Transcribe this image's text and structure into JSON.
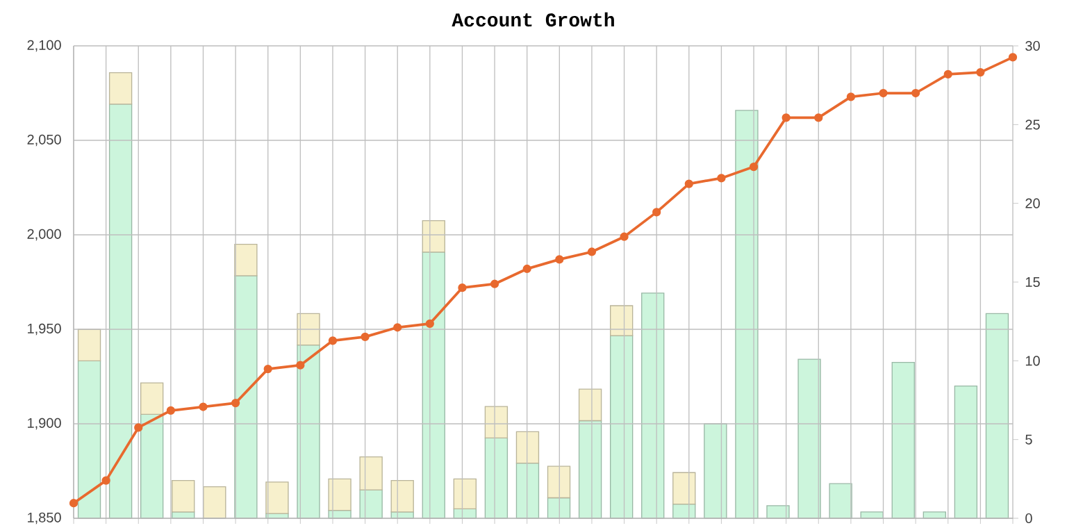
{
  "chart_data": {
    "type": "bar",
    "title": "Account Growth",
    "stacked": true,
    "grid": true,
    "categories": [
      null,
      null,
      null,
      null,
      null,
      null,
      null,
      null,
      null,
      null,
      null,
      null,
      null,
      null,
      null,
      null,
      null,
      null,
      null,
      null,
      null,
      null,
      null,
      null,
      null,
      null,
      null,
      null,
      null,
      null
    ],
    "ylim": [
      1850,
      2100
    ],
    "yticks": [
      {
        "value": 1850,
        "label": "1,850"
      },
      {
        "value": 1900,
        "label": "1,900"
      },
      {
        "value": 1950,
        "label": "1,950"
      },
      {
        "value": 2000,
        "label": "2,000"
      },
      {
        "value": 2050,
        "label": "2,050"
      },
      {
        "value": 2100,
        "label": "2,100"
      }
    ],
    "y2lim": [
      0,
      30
    ],
    "y2ticks": [
      0,
      5,
      10,
      15,
      20,
      25,
      30
    ],
    "series": [
      {
        "color": "#ccf5dc",
        "axis": "y2",
        "values": [
          10,
          26.3,
          6.6,
          0.4,
          0,
          15.4,
          0.3,
          11,
          0.5,
          1.8,
          0.4,
          16.9,
          0.6,
          5.1,
          3.5,
          1.3,
          6.2,
          11.6,
          14.3,
          0.9,
          6,
          25.9,
          0.8,
          10.1,
          2.2,
          0.4,
          9.9,
          0.4,
          8.4,
          13
        ]
      },
      {
        "color": "#f7f0cc",
        "axis": "y2",
        "values": [
          2,
          2,
          2,
          2,
          2,
          2,
          2,
          2,
          2,
          2.1,
          2,
          2,
          1.9,
          2,
          2,
          2,
          2,
          1.9,
          null,
          2,
          null,
          null,
          null,
          null,
          null,
          null,
          null,
          null,
          null,
          null
        ]
      },
      {
        "type": "line",
        "color": "#e8692e",
        "marker": "circle",
        "values": [
          1858,
          1870,
          1898,
          1907,
          1909,
          1911,
          1929,
          1931,
          1944,
          1946,
          1951,
          1953,
          1972,
          1974,
          1982,
          1987,
          1991,
          1999,
          2012,
          2027,
          2030,
          2036,
          2062,
          2062,
          2073,
          2075,
          2075,
          2085,
          2086,
          2094
        ]
      }
    ]
  }
}
